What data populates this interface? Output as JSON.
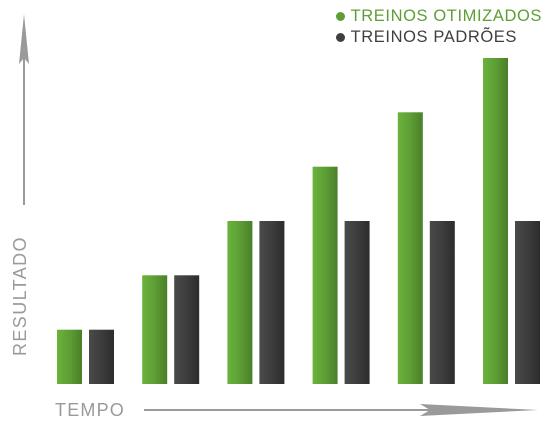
{
  "colors": {
    "green": "#5e9e35",
    "dark": "#3f3f3f",
    "axis": "#9a9a9a"
  },
  "chart_data": {
    "type": "bar",
    "title": "",
    "xlabel": "TEMPO",
    "ylabel": "RESULTADO",
    "categories": [
      "",
      "",
      "",
      "",
      "",
      ""
    ],
    "ylim": [
      0,
      6
    ],
    "legend_position": "top-right",
    "grid": false,
    "series": [
      {
        "name": "TREINOS OTIMIZADOS",
        "values": [
          1,
          2,
          3,
          4,
          5,
          6
        ]
      },
      {
        "name": "TREINOS PADRÕES",
        "values": [
          1,
          2,
          3,
          3,
          3,
          3
        ]
      }
    ]
  }
}
